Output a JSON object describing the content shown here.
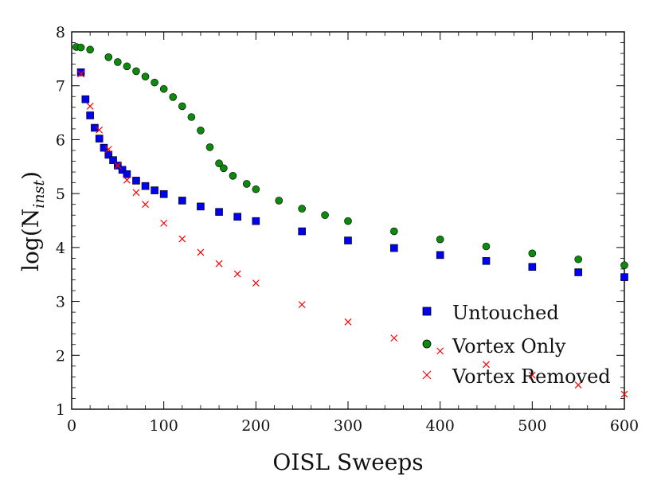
{
  "chart_data": {
    "type": "scatter",
    "title": "",
    "xlabel": "OISL Sweeps",
    "ylabel_main": "log(N",
    "ylabel_sub": "inst",
    "ylabel_close": ")",
    "xlim": [
      0,
      600
    ],
    "ylim": [
      1,
      8
    ],
    "x_ticks": [
      0,
      100,
      200,
      300,
      400,
      500,
      600
    ],
    "x_tick_labels": [
      "0",
      "100",
      "200",
      "300",
      "400",
      "500",
      "600"
    ],
    "y_ticks": [
      1,
      2,
      3,
      4,
      5,
      6,
      7,
      8
    ],
    "y_tick_labels": [
      "1",
      "2",
      "3",
      "4",
      "5",
      "6",
      "7",
      "8"
    ],
    "legend_position": "lower-right",
    "series": [
      {
        "name": "Untouched",
        "marker": "square",
        "color": "#0000ee",
        "x": [
          10,
          15,
          20,
          25,
          30,
          35,
          40,
          45,
          50,
          55,
          60,
          70,
          80,
          90,
          100,
          120,
          140,
          160,
          180,
          200,
          250,
          300,
          350,
          400,
          450,
          500,
          550,
          600
        ],
        "y": [
          7.25,
          6.75,
          6.45,
          6.22,
          6.02,
          5.85,
          5.72,
          5.62,
          5.52,
          5.44,
          5.36,
          5.24,
          5.14,
          5.06,
          4.99,
          4.87,
          4.76,
          4.66,
          4.57,
          4.49,
          4.3,
          4.13,
          3.99,
          3.86,
          3.75,
          3.64,
          3.54,
          3.45
        ]
      },
      {
        "name": "Vortex Only",
        "marker": "circle",
        "color": "#0b8a0b",
        "x": [
          5,
          10,
          20,
          40,
          50,
          60,
          70,
          80,
          90,
          100,
          110,
          120,
          130,
          140,
          150,
          160,
          165,
          175,
          190,
          200,
          225,
          250,
          275,
          300,
          350,
          400,
          450,
          500,
          550,
          600
        ],
        "y": [
          7.72,
          7.71,
          7.67,
          7.53,
          7.44,
          7.36,
          7.27,
          7.17,
          7.06,
          6.94,
          6.79,
          6.62,
          6.42,
          6.17,
          5.86,
          5.56,
          5.47,
          5.33,
          5.18,
          5.08,
          4.87,
          4.72,
          4.6,
          4.49,
          4.3,
          4.15,
          4.02,
          3.89,
          3.78,
          3.67
        ]
      },
      {
        "name": "Vortex Removed",
        "marker": "x",
        "color": "#ff0000",
        "x": [
          10,
          20,
          30,
          40,
          50,
          60,
          70,
          80,
          100,
          120,
          140,
          160,
          180,
          200,
          250,
          300,
          350,
          400,
          450,
          500,
          550,
          600
        ],
        "y": [
          7.22,
          6.62,
          6.18,
          5.82,
          5.52,
          5.25,
          5.02,
          4.8,
          4.45,
          4.16,
          3.91,
          3.7,
          3.51,
          3.34,
          2.94,
          2.62,
          2.32,
          2.08,
          1.83,
          1.63,
          1.45,
          1.28
        ]
      }
    ]
  }
}
